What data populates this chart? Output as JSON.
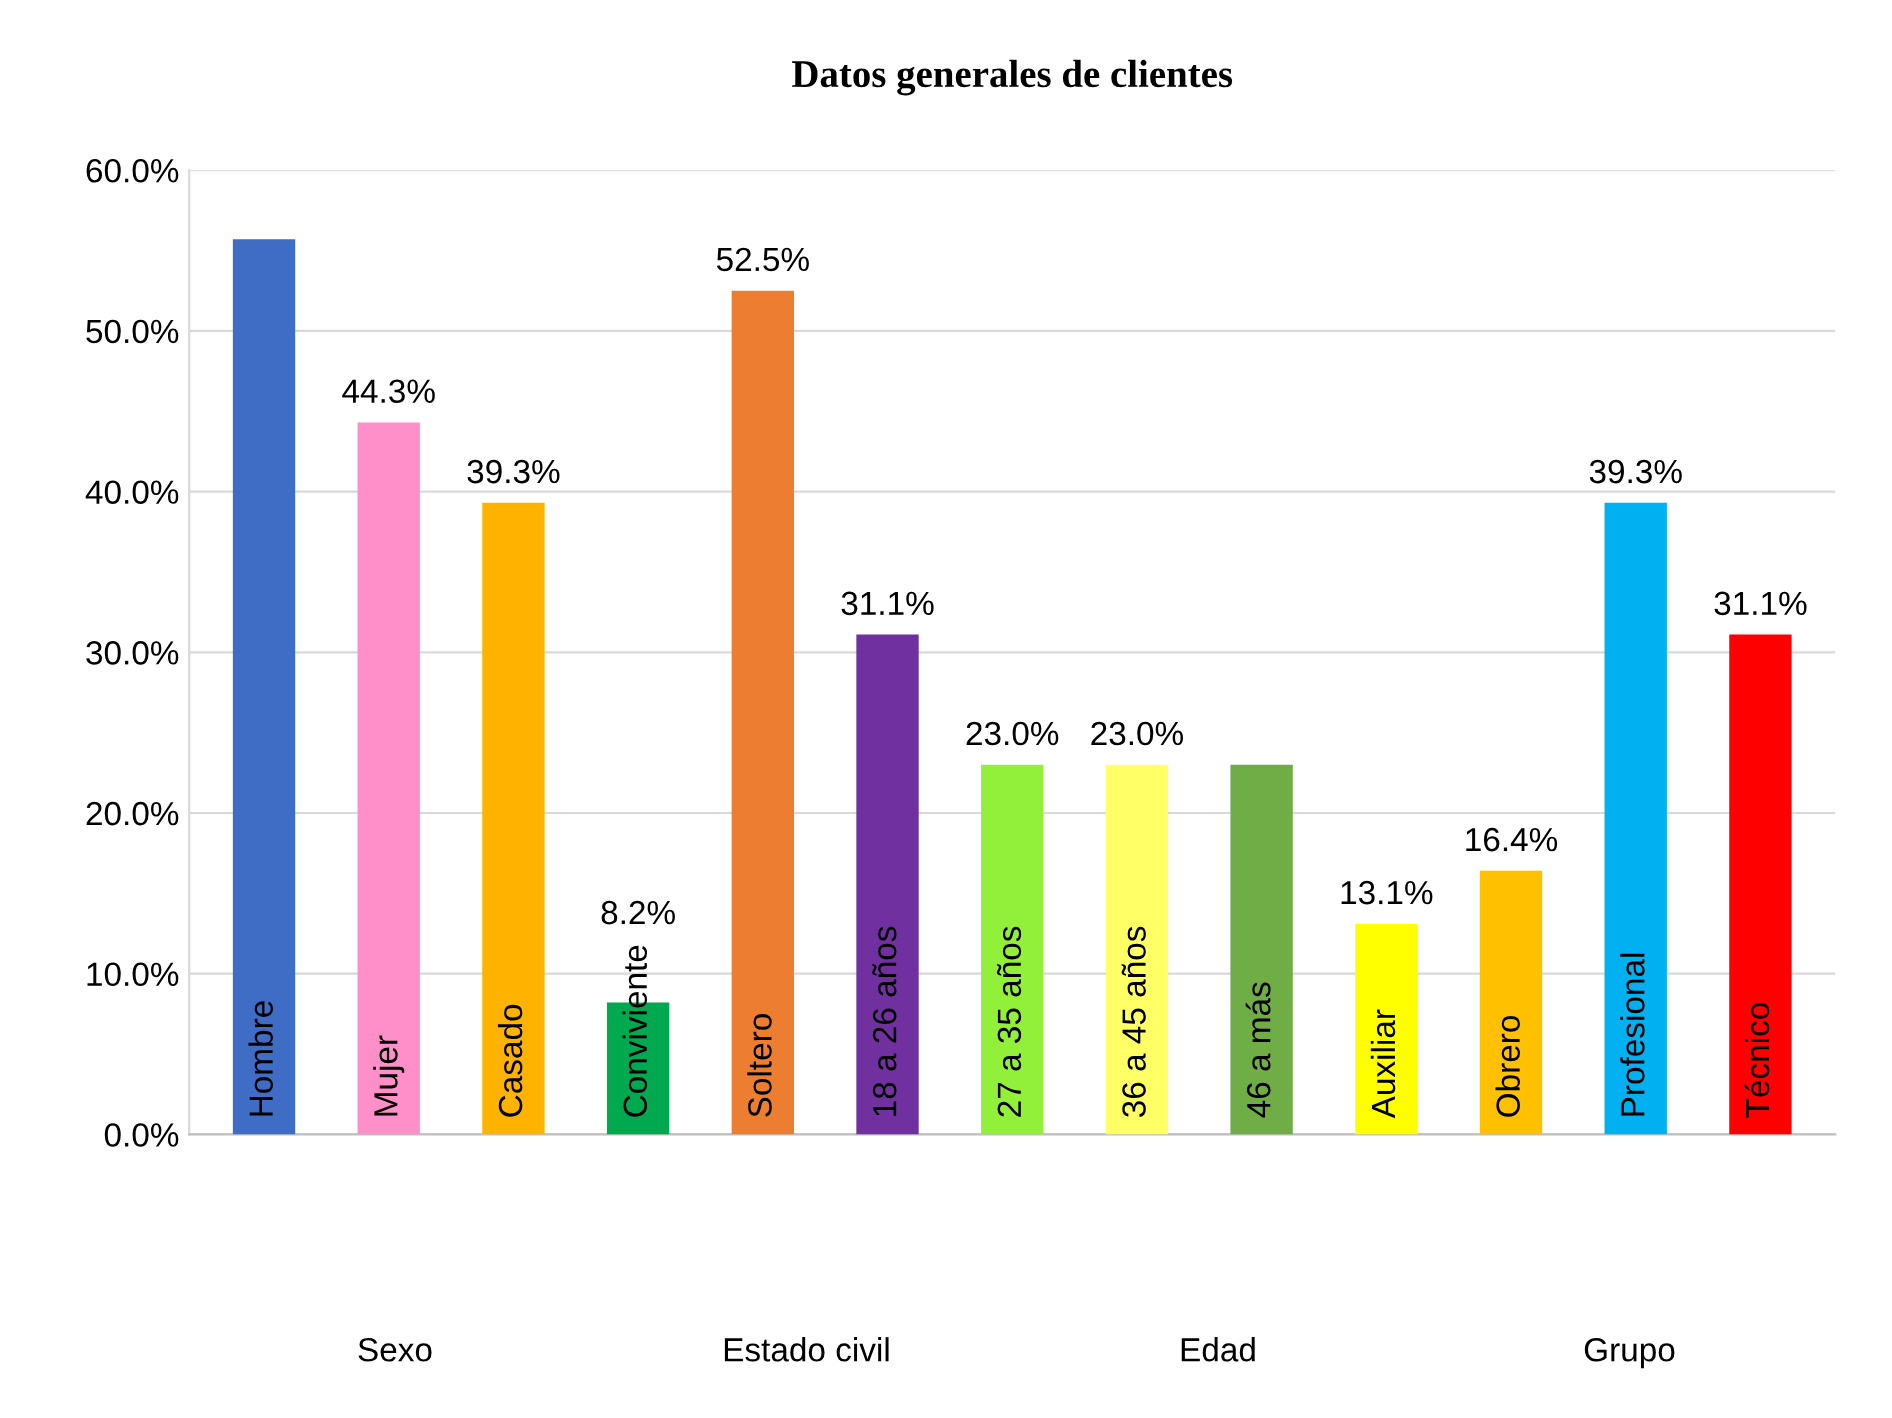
{
  "chart_data": {
    "type": "bar",
    "title": "Datos generales de clientes",
    "categories": [
      "Hombre",
      "Mujer",
      "Casado",
      "Conviviente",
      "Soltero",
      "18 a 26 años",
      "27 a 35 años",
      "36 a 45 años",
      "46 a más",
      "Auxiliar",
      "Obrero",
      "Profesional",
      "Técnico"
    ],
    "values": [
      55.7,
      44.3,
      39.3,
      8.2,
      52.5,
      31.1,
      23.0,
      23.0,
      23.0,
      13.1,
      16.4,
      39.3,
      31.1
    ],
    "value_labels": [
      null,
      "44.3%",
      "39.3%",
      "8.2%",
      "52.5%",
      "31.1%",
      "23.0%",
      "23.0%",
      null,
      "13.1%",
      "16.4%",
      "39.3%",
      "31.1%"
    ],
    "colors": [
      "#3f6cc4",
      "#ff8fc8",
      "#ffb300",
      "#00a84f",
      "#ed7d31",
      "#7030a0",
      "#92f03a",
      "#ffff66",
      "#70ad47",
      "#ffff00",
      "#ffc000",
      "#00b0f0",
      "#ff0000"
    ],
    "ylim": [
      0,
      60
    ],
    "yticks": [
      {
        "value": 0,
        "label": "0.0%"
      },
      {
        "value": 10,
        "label": "10.0%"
      },
      {
        "value": 20,
        "label": "20.0%"
      },
      {
        "value": 30,
        "label": "30.0%"
      },
      {
        "value": 40,
        "label": "40.0%"
      },
      {
        "value": 50,
        "label": "50.0%"
      },
      {
        "value": 60,
        "label": "60.0%"
      }
    ],
    "grid": "y",
    "legend": false,
    "annotations": [
      "Sexo",
      "Estado civil",
      "Edad",
      "Grupo"
    ]
  }
}
